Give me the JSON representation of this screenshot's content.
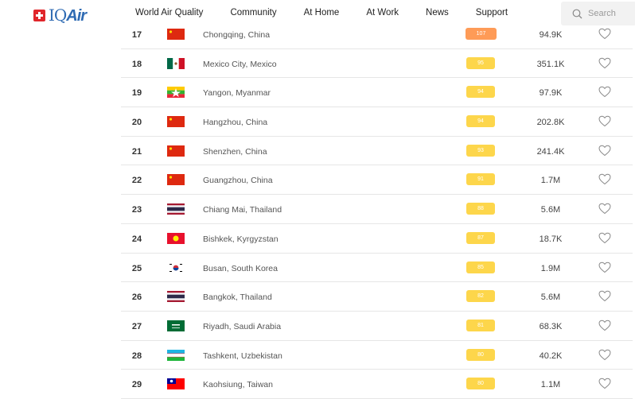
{
  "header": {
    "logo": "IQAir",
    "nav": [
      "World Air Quality",
      "Community",
      "At Home",
      "At Work",
      "News",
      "Support"
    ],
    "search_placeholder": "Search"
  },
  "colors": {
    "moderate": "#fdd64b",
    "unhealthy_sensitive": "#fe9b57"
  },
  "rows": [
    {
      "rank": "17",
      "flag": "china",
      "city": "Chongqing, China",
      "aqi": "107",
      "level": "unhealthy_sensitive",
      "population": "94.9K"
    },
    {
      "rank": "18",
      "flag": "mexico",
      "city": "Mexico City, Mexico",
      "aqi": "95",
      "level": "moderate",
      "population": "351.1K"
    },
    {
      "rank": "19",
      "flag": "myanmar",
      "city": "Yangon, Myanmar",
      "aqi": "94",
      "level": "moderate",
      "population": "97.9K"
    },
    {
      "rank": "20",
      "flag": "china",
      "city": "Hangzhou, China",
      "aqi": "94",
      "level": "moderate",
      "population": "202.8K"
    },
    {
      "rank": "21",
      "flag": "china",
      "city": "Shenzhen, China",
      "aqi": "93",
      "level": "moderate",
      "population": "241.4K"
    },
    {
      "rank": "22",
      "flag": "china",
      "city": "Guangzhou, China",
      "aqi": "91",
      "level": "moderate",
      "population": "1.7M"
    },
    {
      "rank": "23",
      "flag": "thailand",
      "city": "Chiang Mai, Thailand",
      "aqi": "88",
      "level": "moderate",
      "population": "5.6M"
    },
    {
      "rank": "24",
      "flag": "kyrgyzstan",
      "city": "Bishkek, Kyrgyzstan",
      "aqi": "87",
      "level": "moderate",
      "population": "18.7K"
    },
    {
      "rank": "25",
      "flag": "south-korea",
      "city": "Busan, South Korea",
      "aqi": "85",
      "level": "moderate",
      "population": "1.9M"
    },
    {
      "rank": "26",
      "flag": "thailand",
      "city": "Bangkok, Thailand",
      "aqi": "82",
      "level": "moderate",
      "population": "5.6M"
    },
    {
      "rank": "27",
      "flag": "saudi-arabia",
      "city": "Riyadh, Saudi Arabia",
      "aqi": "81",
      "level": "moderate",
      "population": "68.3K"
    },
    {
      "rank": "28",
      "flag": "uzbekistan",
      "city": "Tashkent, Uzbekistan",
      "aqi": "80",
      "level": "moderate",
      "population": "40.2K"
    },
    {
      "rank": "29",
      "flag": "taiwan",
      "city": "Kaohsiung, Taiwan",
      "aqi": "80",
      "level": "moderate",
      "population": "1.1M"
    }
  ]
}
